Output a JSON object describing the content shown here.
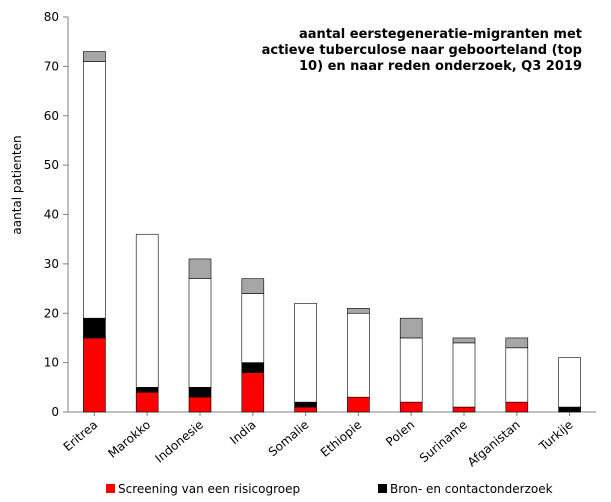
{
  "chart_data": {
    "type": "bar",
    "stacked": true,
    "title_lines": [
      "aantal eerstegeneratie-migranten met",
      "actieve tuberculose naar geboorteland (top",
      "10) en naar reden onderzoek, Q3 2019"
    ],
    "xlabel": "",
    "ylabel": "aantal patienten",
    "ylim": [
      0,
      80
    ],
    "yticks": [
      0,
      10,
      20,
      30,
      40,
      50,
      60,
      70,
      80
    ],
    "grid": false,
    "categories": [
      "Eritrea",
      "Marokko",
      "Indonesie",
      "India",
      "Somalie",
      "Ethiopie",
      "Polen",
      "Suriname",
      "Afganistan",
      "Turkije"
    ],
    "series": [
      {
        "name": "Screening van een risicogroep",
        "color": "#ff0000",
        "values": [
          15,
          4,
          3,
          8,
          1,
          3,
          2,
          1,
          2,
          0
        ]
      },
      {
        "name": "Bron- en contactonderzoek",
        "color": "#000000",
        "values": [
          4,
          1,
          2,
          2,
          1,
          0,
          0,
          0,
          0,
          1
        ]
      },
      {
        "name": "",
        "color": "#ffffff",
        "values": [
          52,
          31,
          22,
          14,
          20,
          17,
          13,
          13,
          11,
          10
        ]
      },
      {
        "name": "",
        "color": "#a6a6a6",
        "values": [
          2,
          0,
          4,
          3,
          0,
          1,
          4,
          1,
          2,
          0
        ]
      }
    ],
    "legend": {
      "placement": "bottom"
    }
  }
}
